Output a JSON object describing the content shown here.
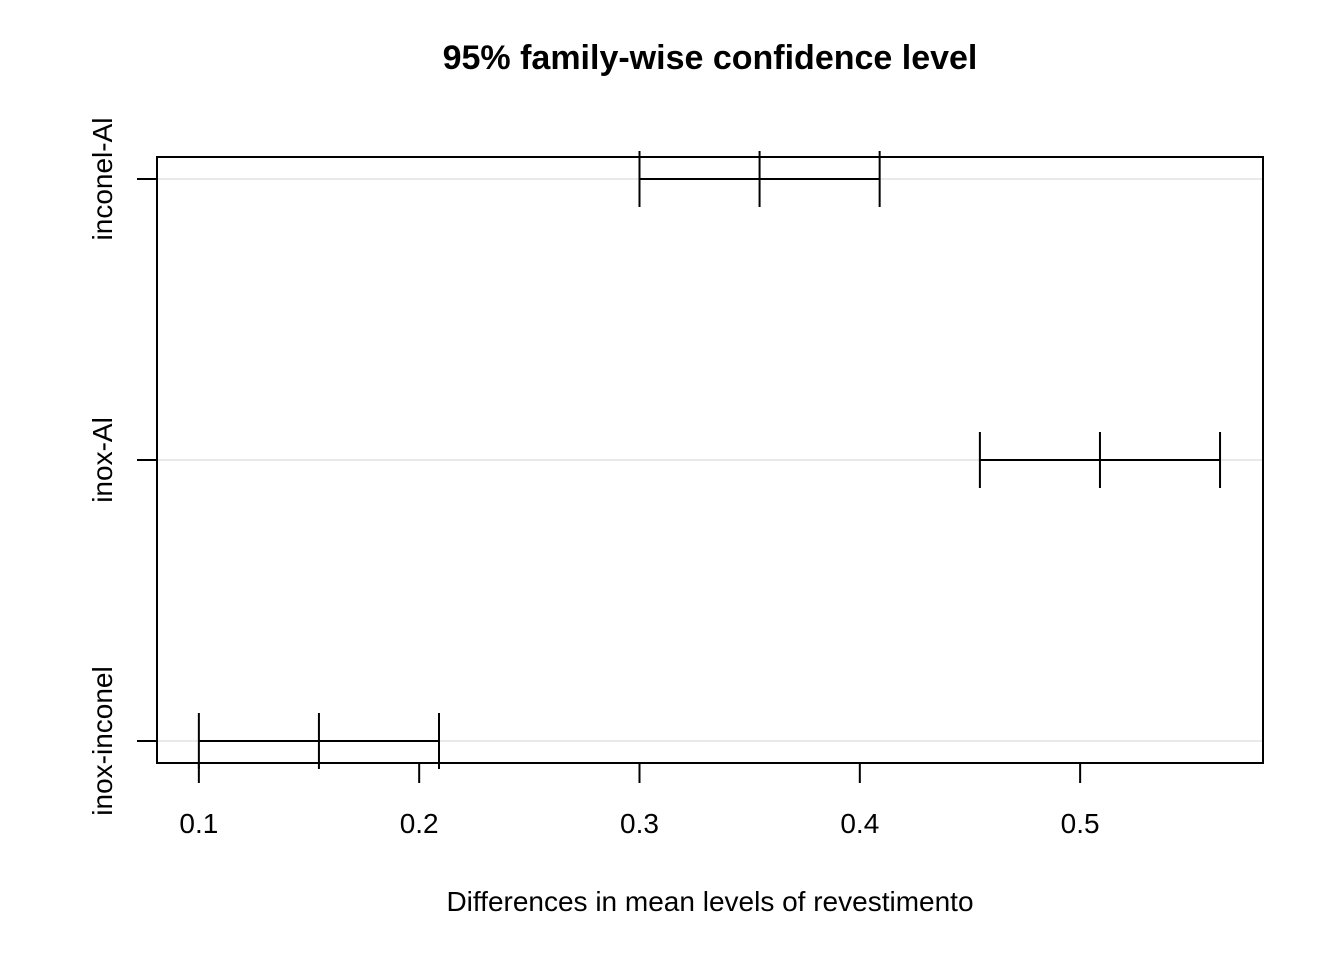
{
  "chart_data": {
    "type": "interval",
    "title": "95% family-wise confidence level",
    "xlabel": "Differences in mean levels of revestimento",
    "ylabel": "",
    "xlim": [
      0.081,
      0.583
    ],
    "x_ticks": [
      0.1,
      0.2,
      0.3,
      0.4,
      0.5
    ],
    "x_tick_labels": [
      "0.1",
      "0.2",
      "0.3",
      "0.4",
      "0.5"
    ],
    "categories": [
      "inox-inconel",
      "inox-Al",
      "inconel-Al"
    ],
    "intervals": [
      {
        "label": "inox-inconel",
        "lwr": 0.1,
        "diff": 0.1545,
        "upr": 0.209
      },
      {
        "label": "inox-Al",
        "lwr": 0.4545,
        "diff": 0.509,
        "upr": 0.5635
      },
      {
        "label": "inconel-Al",
        "lwr": 0.3,
        "diff": 0.3545,
        "upr": 0.409
      }
    ],
    "grid": "horizontal",
    "grid_color": "#d3d3d3",
    "line_color": "#000000",
    "background": "#ffffff"
  }
}
